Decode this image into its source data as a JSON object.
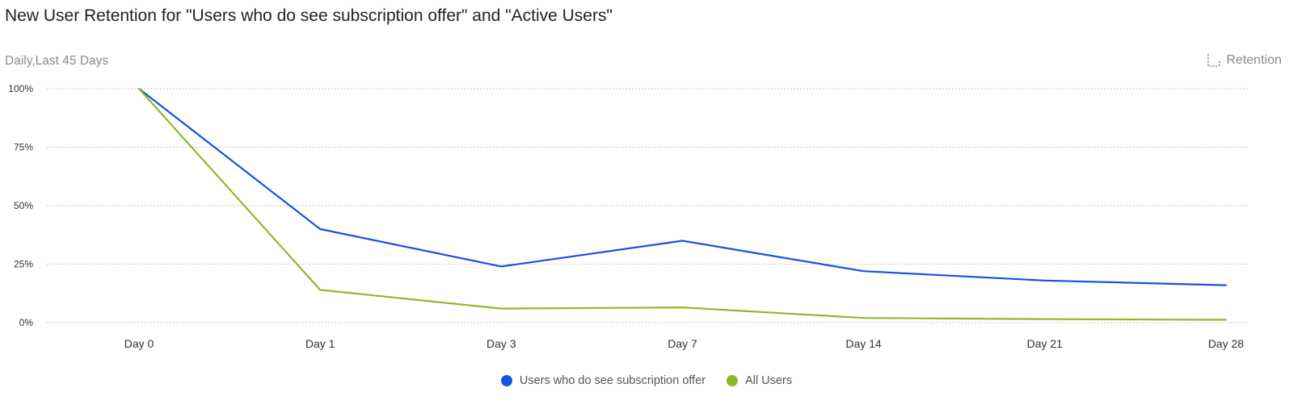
{
  "header": {
    "title": "New User Retention for \"Users who do see subscription offer\" and \"Active Users\"",
    "subtitle": "Daily,Last 45 Days",
    "retention_label": "Retention",
    "retention_icon": "retention-icon"
  },
  "chart_data": {
    "type": "line",
    "categories": [
      "Day 0",
      "Day 1",
      "Day 3",
      "Day 7",
      "Day 14",
      "Day 21",
      "Day 28"
    ],
    "y_ticks": [
      "100%",
      "75%",
      "50%",
      "25%",
      "0%"
    ],
    "ylim": [
      0,
      100
    ],
    "grid": true,
    "legend_position": "bottom-center",
    "series": [
      {
        "name": "Users who do see subscription offer",
        "color": "#1652e0",
        "values": [
          100,
          40,
          24,
          35,
          22,
          18,
          16
        ]
      },
      {
        "name": "All Users",
        "color": "#8fb829",
        "values": [
          100,
          14,
          6,
          6.5,
          2,
          1.5,
          1.2
        ]
      }
    ]
  }
}
